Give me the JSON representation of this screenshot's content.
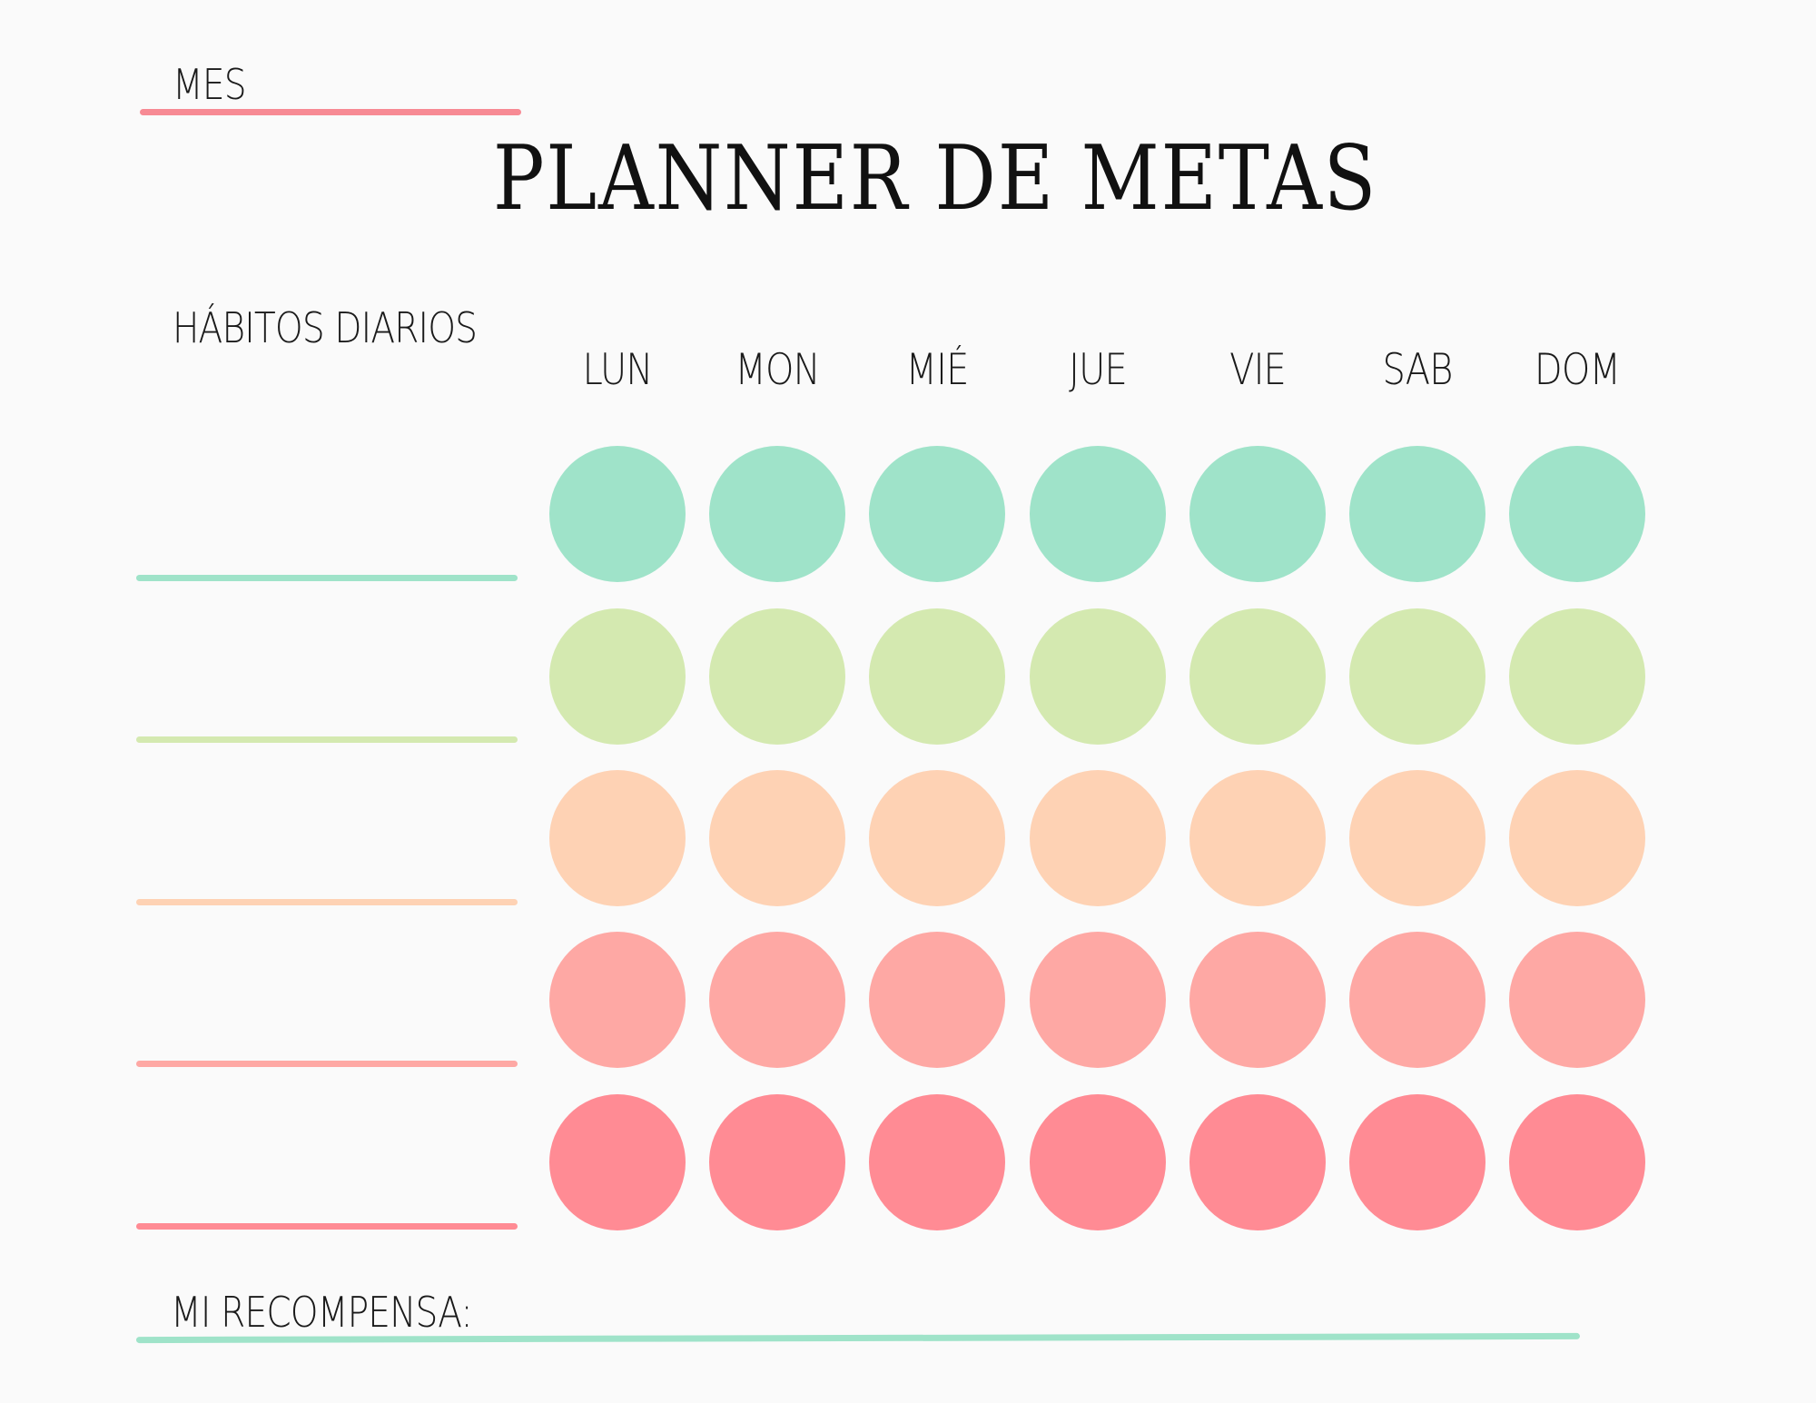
{
  "header": {
    "month_label": "MES",
    "title": "PLANNER DE METAS"
  },
  "habits": {
    "heading": "HÁBITOS DIARIOS",
    "days": [
      "LUN",
      "MON",
      "MIÉ",
      "JUE",
      "VIE",
      "SAB",
      "DOM"
    ],
    "rows": [
      {
        "color": "#9fe3c9"
      },
      {
        "color": "#d4e9b0"
      },
      {
        "color": "#fed2b4"
      },
      {
        "color": "#fea8a4"
      },
      {
        "color": "#ff8b94"
      }
    ]
  },
  "reward": {
    "label": "MI RECOMPENSA:"
  },
  "colors": {
    "month_line": "#f78a94",
    "reward_line": "#9fe3c9"
  }
}
